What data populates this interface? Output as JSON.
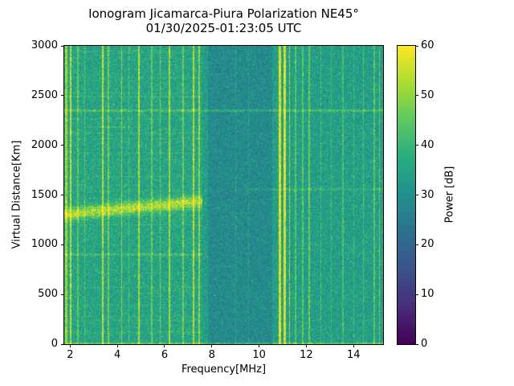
{
  "title": {
    "line1": "Ionogram Jicamarca-Piura Polarization NE45°",
    "line2": "01/30/2025-01:23:05 UTC"
  },
  "chart_data": {
    "type": "heatmap",
    "title": "Ionogram Jicamarca-Piura Polarization NE45°\n01/30/2025-01:23:05 UTC",
    "xlabel": "Frequency[MHz]",
    "ylabel": "Virtual Distance[Km]",
    "colorbar_label": "Power [dB]",
    "colormap": "viridis",
    "xlim": [
      1.75,
      15.25
    ],
    "ylim": [
      0,
      3000
    ],
    "clim": [
      0,
      60
    ],
    "xticks": [
      2,
      4,
      6,
      8,
      10,
      12,
      14
    ],
    "yticks": [
      0,
      500,
      1000,
      1500,
      2000,
      2500,
      3000
    ],
    "cticks": [
      0,
      10,
      20,
      30,
      40,
      50,
      60
    ],
    "background_power_db": 33,
    "noise_spread_db": 12,
    "speckle": {
      "prob": 0.03,
      "max_db": 14
    },
    "features": {
      "rfi_stripes": [
        {
          "f": 1.82,
          "w": 0.1,
          "amp": 16
        },
        {
          "f": 2.03,
          "w": 0.07,
          "amp": 20
        },
        {
          "f": 2.33,
          "w": 0.05,
          "amp": 10
        },
        {
          "f": 2.62,
          "w": 0.04,
          "amp": 8
        },
        {
          "f": 3.38,
          "w": 0.09,
          "amp": 20
        },
        {
          "f": 3.62,
          "w": 0.05,
          "amp": 12
        },
        {
          "f": 4.18,
          "w": 0.06,
          "amp": 14
        },
        {
          "f": 4.5,
          "w": 0.04,
          "amp": 8
        },
        {
          "f": 4.9,
          "w": 0.07,
          "amp": 18
        },
        {
          "f": 5.45,
          "w": 0.05,
          "amp": 11
        },
        {
          "f": 5.82,
          "w": 0.05,
          "amp": 11
        },
        {
          "f": 6.2,
          "w": 0.08,
          "amp": 17
        },
        {
          "f": 6.78,
          "w": 0.05,
          "amp": 12
        },
        {
          "f": 7.22,
          "w": 0.08,
          "amp": 19
        },
        {
          "f": 7.45,
          "w": 0.06,
          "amp": 15
        },
        {
          "f": 9.02,
          "w": 0.04,
          "amp": 6
        },
        {
          "f": 9.55,
          "w": 0.04,
          "amp": 6
        },
        {
          "f": 10.88,
          "w": 0.11,
          "amp": 27
        },
        {
          "f": 11.08,
          "w": 0.09,
          "amp": 27
        },
        {
          "f": 11.28,
          "w": 0.05,
          "amp": 18
        },
        {
          "f": 11.55,
          "w": 0.05,
          "amp": 11
        },
        {
          "f": 11.85,
          "w": 0.05,
          "amp": 11
        },
        {
          "f": 12.12,
          "w": 0.05,
          "amp": 13
        },
        {
          "f": 12.62,
          "w": 0.04,
          "amp": 8
        },
        {
          "f": 13.05,
          "w": 0.04,
          "amp": 7
        },
        {
          "f": 13.55,
          "w": 0.05,
          "amp": 9
        },
        {
          "f": 14.02,
          "w": 0.04,
          "amp": 7
        },
        {
          "f": 14.42,
          "w": 0.05,
          "amp": 10
        },
        {
          "f": 14.88,
          "w": 0.05,
          "amp": 11
        },
        {
          "f": 15.1,
          "w": 0.05,
          "amp": 12
        }
      ],
      "absorption_band": {
        "f0": 7.85,
        "f1": 10.55,
        "delta_db": -5
      },
      "echo_trace": {
        "f0": 1.75,
        "f1": 7.6,
        "alt_at_2mhz_km": 1310,
        "slope_km_per_mhz": 23,
        "sigma_km": 60,
        "peak_delta_db": 20
      },
      "horizontal_lines": [
        {
          "alt": 2350,
          "f0": 1.75,
          "f1": 15.25,
          "half_km": 12,
          "delta_db": 8
        },
        {
          "alt": 2185,
          "f0": 2.7,
          "f1": 4.6,
          "half_km": 10,
          "delta_db": 6
        },
        {
          "alt": 900,
          "f0": 1.75,
          "f1": 7.6,
          "half_km": 10,
          "delta_db": 6
        },
        {
          "alt": 1555,
          "f0": 9.3,
          "f1": 15.25,
          "half_km": 10,
          "delta_db": 5
        },
        {
          "alt": 8,
          "f0": 1.75,
          "f1": 15.25,
          "half_km": 8,
          "delta_db": 10
        }
      ],
      "streaky_region": {
        "f0": 1.75,
        "f1": 7.6,
        "row_fraction": 0.1,
        "delta_db": 7,
        "base_boost_db": 1.5
      }
    },
    "colors": {
      "viridis_stops": [
        "#440154",
        "#472d7b",
        "#3b528b",
        "#2c718e",
        "#21908d",
        "#27ad81",
        "#5cc863",
        "#aadc32",
        "#fde725"
      ],
      "axis_color": "#000000",
      "background": "#ffffff"
    }
  }
}
